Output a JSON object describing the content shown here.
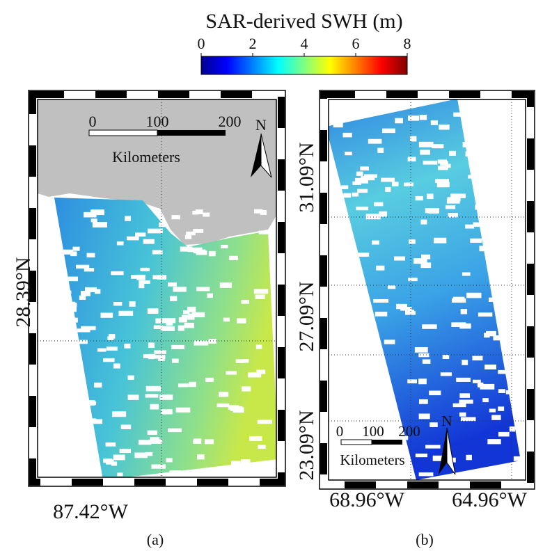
{
  "title": "SAR-derived SWH (m)",
  "colorbar": {
    "lim": [
      0,
      8
    ],
    "ticks": [
      0,
      2,
      4,
      6,
      8
    ]
  },
  "panels": [
    {
      "caption": "(a)",
      "lat_labels": [
        "28.39°N"
      ],
      "lon_labels": [
        "87.42°W"
      ],
      "scale_bar": {
        "labels": [
          "0",
          "100",
          "200"
        ],
        "unit": "Kilometers"
      },
      "north": "N"
    },
    {
      "caption": "(b)",
      "lat_labels": [
        "31.09°N",
        "27.09°N",
        "23.09°N"
      ],
      "lon_labels": [
        "68.96°W",
        "64.96°W"
      ],
      "scale_bar": {
        "labels": [
          "0",
          "100",
          "200"
        ],
        "unit": "Kilometers"
      },
      "north": "N"
    }
  ]
}
